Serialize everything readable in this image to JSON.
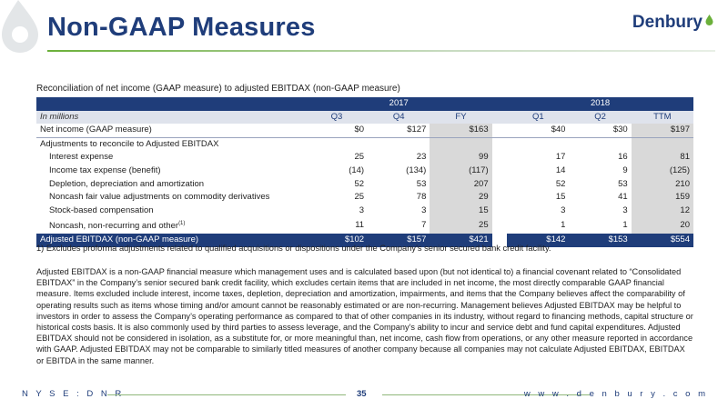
{
  "header": {
    "title": "Non-GAAP Measures",
    "logo_text": "Denbury"
  },
  "table": {
    "caption": "Reconciliation of net income (GAAP measure) to adjusted EBITDAX (non-GAAP measure)",
    "years": [
      "2017",
      "2018"
    ],
    "units_label": "In millions",
    "periods": [
      "Q3",
      "Q4",
      "FY",
      "Q1",
      "Q2",
      "TTM"
    ],
    "net_income": {
      "label": "Net income (GAAP measure)",
      "values": [
        "$0",
        "$127",
        "$163",
        "$40",
        "$30",
        "$197"
      ]
    },
    "adjustments_label": "Adjustments to reconcile to Adjusted EBITDAX",
    "rows": [
      {
        "label": "Interest expense",
        "values": [
          "25",
          "23",
          "99",
          "17",
          "16",
          "81"
        ]
      },
      {
        "label": "Income tax expense (benefit)",
        "values": [
          "(14)",
          "(134)",
          "(117)",
          "14",
          "9",
          "(125)"
        ]
      },
      {
        "label": "Depletion, depreciation and amortization",
        "values": [
          "52",
          "53",
          "207",
          "52",
          "53",
          "210"
        ]
      },
      {
        "label": "Noncash fair value adjustments on commodity derivatives",
        "values": [
          "25",
          "78",
          "29",
          "15",
          "41",
          "159"
        ]
      },
      {
        "label": "Stock-based compensation",
        "values": [
          "3",
          "3",
          "15",
          "3",
          "3",
          "12"
        ]
      },
      {
        "label": "Noncash, non-recurring and other",
        "note": "(1)",
        "values": [
          "11",
          "7",
          "25",
          "1",
          "1",
          "20"
        ]
      }
    ],
    "total": {
      "label": "Adjusted EBITDAX (non-GAAP measure)",
      "values": [
        "$102",
        "$157",
        "$421",
        "$142",
        "$153",
        "$554"
      ]
    }
  },
  "footnote": "1) Excludes proforma adjustments related to qualified acquisitions or dispositions under the Company’s senior secured bank credit facility.",
  "paragraph": "Adjusted EBITDAX is a non-GAAP financial measure which management uses and is calculated based upon (but not identical to) a financial covenant related to “Consolidated EBITDAX” in the Company’s senior secured bank credit facility, which excludes certain items that are included in net income, the most directly comparable GAAP financial measure. Items excluded include interest, income taxes, depletion, depreciation and amortization, impairments, and items that the Company believes affect the comparability of operating results such as items whose timing and/or amount cannot be reasonably estimated or are non-recurring. Management believes Adjusted EBITDAX may be helpful to investors in order to assess the Company’s operating performance as compared to that of other companies in its industry, without regard to financing methods, capital structure or historical costs basis. It is also commonly used by third parties to assess leverage, and the Company’s ability to incur and service debt and fund capital expenditures. Adjusted EBITDAX should not be considered in isolation, as a substitute for, or more meaningful than, net income, cash flow from operations, or any other measure reported in accordance with GAAP. Adjusted EBITDAX may not be comparable to similarly titled measures of another company because all companies may not calculate Adjusted EBITDAX, EBITDAX or EBITDA in the same manner.",
  "footer": {
    "ticker": "N Y S E : D N R",
    "page": "35",
    "website": "w w w . d e n b u r y . c o m"
  },
  "colors": {
    "navy": "#1f3d7a",
    "green": "#6bb03a",
    "shade": "#d9d9d9"
  }
}
